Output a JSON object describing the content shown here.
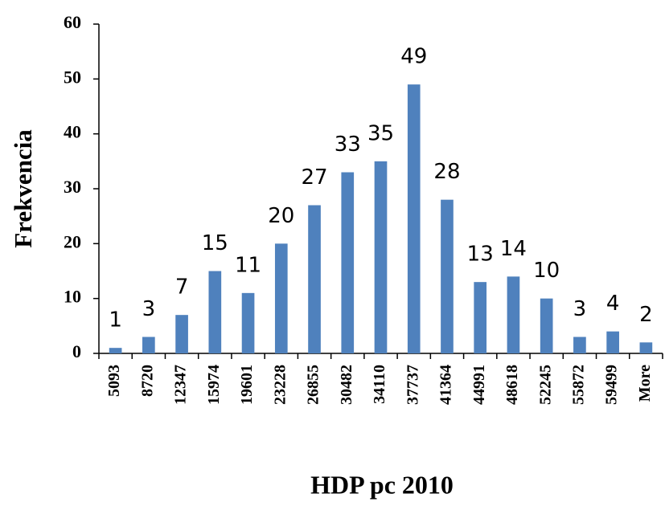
{
  "chart_data": {
    "type": "bar",
    "x_label": "HDP pc 2010",
    "y_label": "Frekvencia",
    "categories": [
      "5093",
      "8720",
      "12347",
      "15974",
      "19601",
      "23228",
      "26855",
      "30482",
      "34110",
      "37737",
      "41364",
      "44991",
      "48618",
      "52245",
      "55872",
      "59499",
      "More"
    ],
    "values": [
      1,
      3,
      7,
      15,
      11,
      20,
      27,
      33,
      35,
      49,
      28,
      13,
      14,
      10,
      3,
      4,
      2
    ],
    "color": "#4f81bd",
    "ylim": [
      0,
      60
    ],
    "yticks": [
      0,
      10,
      20,
      30,
      40,
      50,
      60
    ],
    "grid": false
  }
}
